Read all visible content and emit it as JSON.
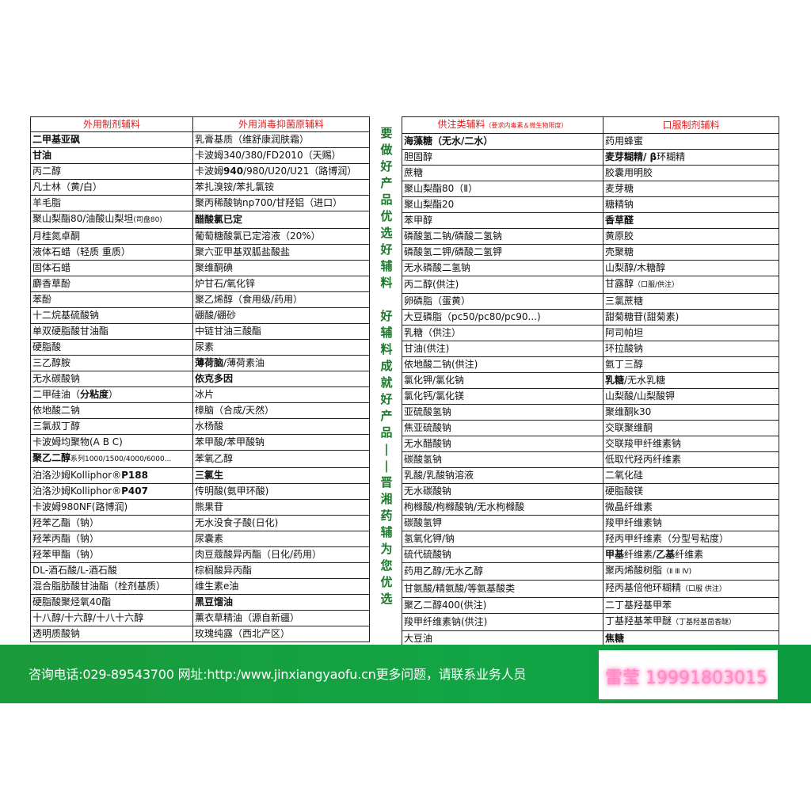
{
  "left_table": {
    "headers": [
      "外用制剂辅料",
      "外用消毒抑菌原辅料"
    ],
    "rows": [
      [
        [
          [
            "二甲基亚砜",
            "b"
          ]
        ],
        "乳膏基质（维舒康润肤霜）"
      ],
      [
        [
          [
            "甘油",
            "b"
          ]
        ],
        "卡波姆340/380/FD2010（天赐）"
      ],
      [
        "丙二醇",
        [
          [
            "卡波姆",
            ""
          ],
          [
            "940",
            "b"
          ],
          [
            "/980/U20/U21（路博润）",
            ""
          ]
        ]
      ],
      [
        "凡士林（黄/白）",
        "苯扎溴铵/苯扎氯铵"
      ],
      [
        "羊毛脂",
        "聚丙稀酸钠np700/甘羟铝（进口）"
      ],
      [
        [
          [
            "聚山梨酯80/油酸山梨坦",
            ""
          ],
          [
            "(司盘80)",
            "s"
          ]
        ],
        [
          [
            "醋酸氯已定",
            "b"
          ]
        ]
      ],
      [
        "月桂氮卓酮",
        "葡萄糖酸氯已定溶液（20%）"
      ],
      [
        "液体石蜡（轻质 重质）",
        "聚六亚甲基双胍盐酸盐"
      ],
      [
        "固体石蜡",
        "聚维酮碘"
      ],
      [
        "麝香草酚",
        "炉甘石/氧化锌"
      ],
      [
        "苯酚",
        "聚乙烯醇（食用级/药用）"
      ],
      [
        "十二烷基硫酸钠",
        "硼酸/硼砂"
      ],
      [
        "单双硬脂酸甘油酯",
        "中链甘油三酸酯"
      ],
      [
        "硬脂酸",
        "尿素"
      ],
      [
        " 三乙醇胺",
        [
          [
            "薄荷脑",
            "b"
          ],
          [
            "/薄荷素油",
            ""
          ]
        ]
      ],
      [
        "无水碳酸钠",
        [
          [
            "依克多因",
            "b"
          ]
        ]
      ],
      [
        [
          [
            "二甲硅油（",
            ""
          ],
          [
            "分粘度",
            "b"
          ],
          [
            "）",
            ""
          ]
        ],
        "冰片"
      ],
      [
        "依地酸二钠",
        "樟脑（合成/天然）"
      ],
      [
        "三氯叔丁醇",
        "水杨酸"
      ],
      [
        "卡波姆均聚物(A B C)",
        "苯甲酸/苯甲酸钠"
      ],
      [
        [
          [
            "聚乙二醇",
            "b"
          ],
          [
            "系列1000/1500/4000/6000...",
            "s"
          ]
        ],
        "苯氧乙醇"
      ],
      [
        [
          [
            "泊洛沙姆Kolliphor®",
            ""
          ],
          [
            "P188",
            "b"
          ]
        ],
        [
          [
            "三氯生",
            "b"
          ]
        ]
      ],
      [
        [
          [
            "泊洛沙姆Kolliphor®",
            ""
          ],
          [
            "P407",
            "b"
          ]
        ],
        "传明酸(氨甲环酸)"
      ],
      [
        "卡波姆980NF(路博润)",
        "熊果苷"
      ],
      [
        "羟苯乙酯（钠）",
        "无水没食子酸(日化)"
      ],
      [
        "羟苯丙酯（钠）",
        "尿囊素"
      ],
      [
        "羟苯甲酯（钠）",
        "肉豆蔻酸异丙酯（日化/药用）"
      ],
      [
        "DL-酒石酸/L-酒石酸",
        "棕榈酸异丙酯"
      ],
      [
        "混合脂肪酸甘油酯（栓剂基质）",
        "维生素e油"
      ],
      [
        "硬脂酸聚烃氧40酯",
        [
          [
            "黑豆馏油",
            "b"
          ]
        ]
      ],
      [
        "十八醇/十六醇/十八十六醇",
        "薰衣草精油（源自新疆）"
      ],
      [
        " 透明质酸钠",
        "玫瑰纯露（西北产区）"
      ]
    ]
  },
  "right_table": {
    "headers": [
      "供注类辅料",
      "口服制剂辅料"
    ],
    "header_note": "（要求内毒素＆微生物限度）",
    "rows": [
      [
        [
          [
            "海藻糖（无水/二水）",
            "b"
          ]
        ],
        "药用蜂蜜"
      ],
      [
        "胆固醇",
        [
          [
            "麦芽糊精/ β",
            "b"
          ],
          [
            "环糊精",
            ""
          ]
        ]
      ],
      [
        "蔗糖",
        " 胶囊用明胶"
      ],
      [
        "聚山梨酯80（Ⅱ）",
        "麦芽糖"
      ],
      [
        "聚山梨酯20",
        "糖精钠"
      ],
      [
        "苯甲醇",
        [
          [
            "香草醛",
            "b"
          ]
        ]
      ],
      [
        "磷酸氢二钠/磷酸二氢钠",
        "黄原胶"
      ],
      [
        "磷酸氢二钾/磷酸二氢钾",
        "壳聚糖"
      ],
      [
        "无水磷酸二氢钠",
        "山梨醇/木糖醇"
      ],
      [
        " 丙二醇(供注)",
        [
          [
            "甘露醇",
            ""
          ],
          [
            "（口服/供注）",
            "s"
          ]
        ]
      ],
      [
        "卵磷脂（蛋黄）",
        "三氯蔗糖"
      ],
      [
        "大豆磷脂（pc50/pc80/pc90...)",
        "甜菊糖苷(甜菊素)"
      ],
      [
        "乳糖（供注）",
        "阿司帕坦"
      ],
      [
        " 甘油(供注)",
        "环拉酸钠"
      ],
      [
        "依地酸二钠(供注)",
        "氨丁三醇"
      ],
      [
        "氯化钾/氯化钠",
        [
          [
            "乳糖",
            "b"
          ],
          [
            "/无水乳糖",
            ""
          ]
        ]
      ],
      [
        "氯化钙/氯化镁",
        "山梨酸/山梨酸钾"
      ],
      [
        "亚硫酸氢钠",
        "聚维酮k30"
      ],
      [
        "焦亚硫酸钠",
        "交联聚维酮"
      ],
      [
        "无水醋酸钠",
        "交联羧甲纤维素钠"
      ],
      [
        "碳酸氢钠",
        "低取代羟丙纤维素"
      ],
      [
        "乳酸/乳酸钠溶液",
        "二氧化硅"
      ],
      [
        "无水碳酸钠",
        "硬脂酸镁"
      ],
      [
        "枸橼酸/枸橼酸钠/无水枸橼酸",
        "微晶纤维素"
      ],
      [
        "碳酸氢钾",
        "羧甲纤维素钠"
      ],
      [
        "氢氧化钾/钠",
        "羟丙甲纤维素（分型号粘度）"
      ],
      [
        "硫代硫酸钠",
        [
          [
            "甲基",
            "b"
          ],
          [
            "纤维素/",
            ""
          ],
          [
            "乙基",
            "b"
          ],
          [
            "纤维素",
            ""
          ]
        ]
      ],
      [
        "药用乙醇/无水乙醇",
        [
          [
            "聚丙烯酸树脂",
            ""
          ],
          [
            "（Ⅱ Ⅲ Ⅳ)",
            "s"
          ]
        ]
      ],
      [
        " 甘氨酸/精氨酸/等氨基酸类",
        [
          [
            "羟丙基倍他环糊精",
            ""
          ],
          [
            "（口服 供注）",
            "s"
          ]
        ]
      ],
      [
        " 聚乙二醇400(供注)",
        "二丁基羟基甲苯"
      ],
      [
        " 羧甲纤维素钠(供注)",
        [
          [
            "丁基羟基苯甲醚",
            ""
          ],
          [
            "（丁基羟基茴香醚）",
            "s"
          ]
        ]
      ],
      [
        " 大豆油",
        [
          [
            "焦糖",
            "b"
          ]
        ]
      ]
    ]
  },
  "slogan": "要做好产品优选好辅料 好辅料成就好产品——晋湘药辅为您优选",
  "footer": {
    "contact": "咨询电话:029-89543700  网址:http:/www.jinxiangyaofu.cn更多问题，请联系业务人员",
    "sales_contact": "雷莹 19991803015"
  },
  "colors": {
    "header_red": "#e01c1c",
    "band_green": "#12a545",
    "slogan_green": "#1a7a2a",
    "pink": "#ff8cc8"
  }
}
